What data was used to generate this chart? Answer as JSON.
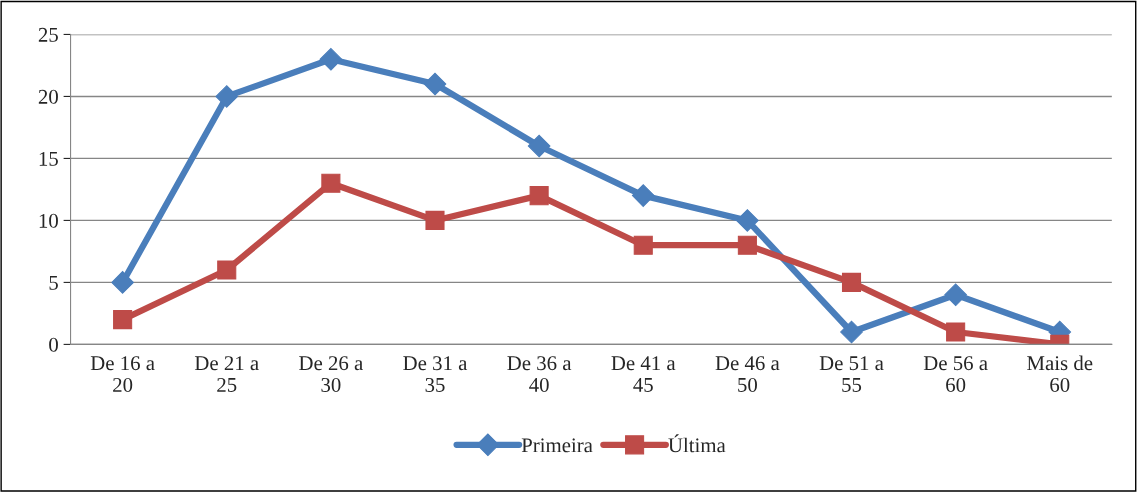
{
  "chart_data": {
    "type": "line",
    "categories": [
      "De 16 a\n20",
      "De 21 a\n25",
      "De 26 a\n30",
      "De 31 a\n35",
      "De 36 a\n40",
      "De 41 a\n45",
      "De 46 a\n50",
      "De 51 a\n55",
      "De 56 a\n60",
      "Mais de\n60"
    ],
    "series": [
      {
        "name": "Primeira",
        "color": "#4a7ebb",
        "marker": "diamond",
        "values": [
          5,
          20,
          23,
          21,
          16,
          12,
          10,
          1,
          4,
          1
        ]
      },
      {
        "name": "Última",
        "color": "#be4b48",
        "marker": "square",
        "values": [
          2,
          6,
          13,
          10,
          12,
          8,
          8,
          5,
          1,
          0
        ]
      }
    ],
    "ylim": [
      0,
      25
    ],
    "yticks": [
      0,
      5,
      10,
      15,
      20,
      25
    ],
    "grid": "y",
    "legend": "bottom",
    "line_style": "solid"
  }
}
